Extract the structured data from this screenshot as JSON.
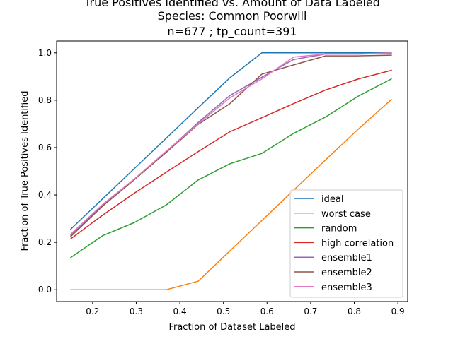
{
  "chart_data": {
    "type": "line",
    "title_lines": [
      "True Positives Identified vs. Amount of Data Labeled",
      "Species: Common Poorwill",
      "n=677 ; tp_count=391"
    ],
    "xlabel": "Fraction of Dataset Labeled",
    "ylabel": "Fraction of True Positives Identified",
    "xlim": [
      0.1175,
      0.9225
    ],
    "ylim": [
      -0.05,
      1.05
    ],
    "xticks": [
      0.2,
      0.3,
      0.4,
      0.5,
      0.6,
      0.7,
      0.8,
      0.9
    ],
    "yticks": [
      0.0,
      0.2,
      0.4,
      0.6,
      0.8,
      1.0
    ],
    "x": [
      0.15,
      0.223,
      0.296,
      0.369,
      0.442,
      0.515,
      0.588,
      0.661,
      0.734,
      0.808,
      0.885
    ],
    "grid": false,
    "legend_position": "lower-right",
    "series": [
      {
        "name": "ideal",
        "color": "#1f77b4",
        "values": [
          0.256,
          0.384,
          0.512,
          0.64,
          0.768,
          0.895,
          1.0,
          1.0,
          1.0,
          1.0,
          1.0
        ]
      },
      {
        "name": "worst case",
        "color": "#ff7f0e",
        "values": [
          0.0,
          0.0,
          0.0,
          0.0,
          0.036,
          0.164,
          0.292,
          0.42,
          0.548,
          0.676,
          0.803
        ]
      },
      {
        "name": "random",
        "color": "#2ca02c",
        "values": [
          0.136,
          0.228,
          0.284,
          0.358,
          0.463,
          0.532,
          0.575,
          0.66,
          0.729,
          0.816,
          0.89
        ]
      },
      {
        "name": "high correlation",
        "color": "#d62728",
        "values": [
          0.215,
          0.315,
          0.408,
          0.496,
          0.583,
          0.667,
          0.726,
          0.786,
          0.843,
          0.889,
          0.926
        ]
      },
      {
        "name": "ensemble1",
        "color": "#9467bd",
        "values": [
          0.23,
          0.358,
          0.465,
          0.583,
          0.706,
          0.82,
          0.897,
          0.972,
          0.995,
          0.995,
          0.997
        ]
      },
      {
        "name": "ensemble2",
        "color": "#8c564b",
        "values": [
          0.225,
          0.353,
          0.465,
          0.58,
          0.698,
          0.786,
          0.91,
          0.949,
          0.987,
          0.987,
          0.99
        ]
      },
      {
        "name": "ensemble3",
        "color": "#e377c2",
        "values": [
          0.235,
          0.36,
          0.468,
          0.585,
          0.7,
          0.81,
          0.89,
          0.982,
          0.995,
          0.995,
          1.0
        ]
      }
    ]
  }
}
